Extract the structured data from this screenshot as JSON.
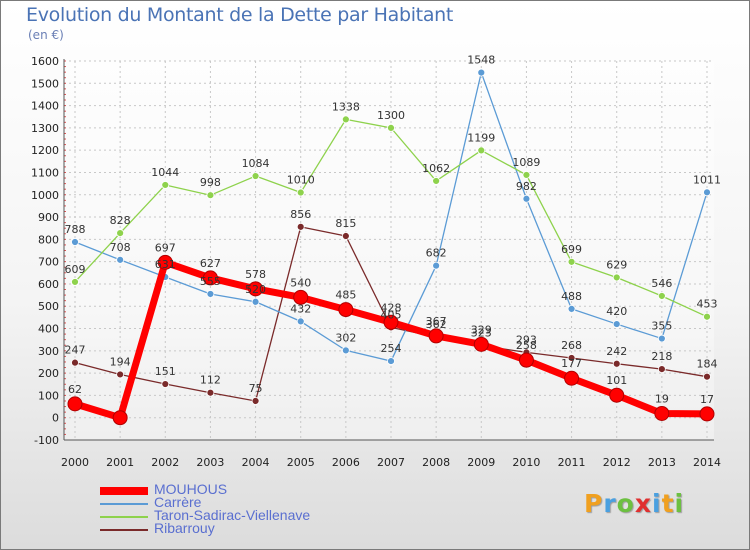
{
  "title": "Evolution du Montant de la Dette par Habitant",
  "subtitle": "(en €)",
  "logo": {
    "letters": [
      "P",
      "r",
      "o",
      "x",
      "i",
      "t",
      "i"
    ],
    "colors": [
      "#f0a020",
      "#4aa0e0",
      "#6cc040",
      "#e03030",
      "#4aa0e0",
      "#f0a020",
      "#6cc040"
    ]
  },
  "chart_data": {
    "type": "line",
    "x": [
      2000,
      2001,
      2002,
      2003,
      2004,
      2005,
      2006,
      2007,
      2008,
      2009,
      2010,
      2011,
      2012,
      2013,
      2014
    ],
    "ylim": [
      -100,
      1600
    ],
    "yticks": [
      -100,
      0,
      100,
      200,
      300,
      400,
      500,
      600,
      700,
      800,
      900,
      1000,
      1100,
      1200,
      1300,
      1400,
      1500,
      1600
    ],
    "grid": true,
    "legend_position": "bottom-left",
    "series": [
      {
        "name": "MOUHOUS",
        "color": "#ff0000",
        "values": [
          62,
          0,
          697,
          627,
          578,
          540,
          485,
          428,
          367,
          329,
          258,
          177,
          101,
          19,
          17
        ],
        "labels": [
          "62",
          "",
          "697",
          "627",
          "578",
          "540",
          "485",
          "428",
          "367",
          "329",
          "258",
          "177",
          "101",
          "19",
          "17"
        ]
      },
      {
        "name": "Carrère",
        "color": "#5b9bd5",
        "values": [
          788,
          708,
          631,
          555,
          520,
          432,
          302,
          254,
          682,
          1548,
          982,
          488,
          420,
          355,
          1011
        ],
        "labels": [
          "788",
          "708",
          "631",
          "555",
          "520",
          "432",
          "302",
          "254",
          "682",
          "1548",
          "982",
          "488",
          "420",
          "355",
          "1011"
        ]
      },
      {
        "name": "Taron-Sadirac-Viellenave",
        "color": "#8ed24c",
        "values": [
          609,
          828,
          1044,
          998,
          1084,
          1010,
          1338,
          1300,
          1062,
          1199,
          1089,
          699,
          629,
          546,
          453
        ],
        "labels": [
          "609",
          "828",
          "1044",
          "998",
          "1084",
          "1010",
          "1338",
          "1300",
          "1062",
          "1199",
          "1089",
          "699",
          "629",
          "546",
          "453"
        ]
      },
      {
        "name": "Ribarrouy",
        "color": "#7a2a2a",
        "values": [
          247,
          194,
          151,
          112,
          75,
          856,
          815,
          405,
          362,
          323,
          293,
          268,
          242,
          218,
          184
        ],
        "labels": [
          "247",
          "194",
          "151",
          "112",
          "75",
          "856",
          "815",
          "405",
          "362",
          "323",
          "293",
          "268",
          "242",
          "218",
          "184"
        ]
      }
    ]
  }
}
